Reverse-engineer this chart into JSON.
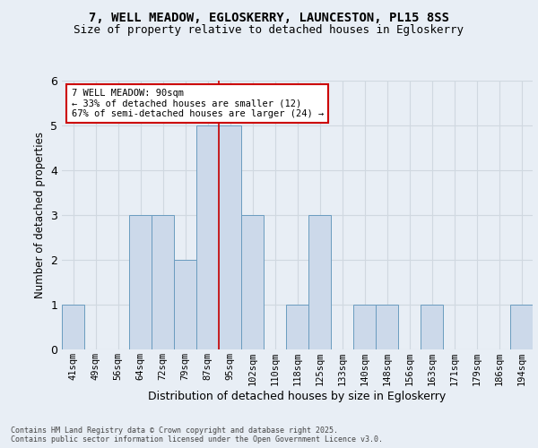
{
  "title_line1": "7, WELL MEADOW, EGLOSKERRY, LAUNCESTON, PL15 8SS",
  "title_line2": "Size of property relative to detached houses in Egloskerry",
  "xlabel": "Distribution of detached houses by size in Egloskerry",
  "ylabel": "Number of detached properties",
  "categories": [
    "41sqm",
    "49sqm",
    "56sqm",
    "64sqm",
    "72sqm",
    "79sqm",
    "87sqm",
    "95sqm",
    "102sqm",
    "110sqm",
    "118sqm",
    "125sqm",
    "133sqm",
    "140sqm",
    "148sqm",
    "156sqm",
    "163sqm",
    "171sqm",
    "179sqm",
    "186sqm",
    "194sqm"
  ],
  "values": [
    1,
    0,
    0,
    3,
    3,
    2,
    5,
    5,
    3,
    0,
    1,
    3,
    0,
    1,
    1,
    0,
    1,
    0,
    0,
    0,
    1
  ],
  "bar_color": "#ccd9ea",
  "bar_edge_color": "#6a9cbf",
  "vline_index": 6.5,
  "annotation_text": "7 WELL MEADOW: 90sqm\n← 33% of detached houses are smaller (12)\n67% of semi-detached houses are larger (24) →",
  "annotation_box_color": "#ffffff",
  "annotation_box_edge": "#cc0000",
  "vline_color": "#cc0000",
  "grid_color": "#d0d8e0",
  "ylim": [
    0,
    6
  ],
  "yticks": [
    0,
    1,
    2,
    3,
    4,
    5,
    6
  ],
  "footer_text": "Contains HM Land Registry data © Crown copyright and database right 2025.\nContains public sector information licensed under the Open Government Licence v3.0.",
  "bg_color": "#e8eef5"
}
